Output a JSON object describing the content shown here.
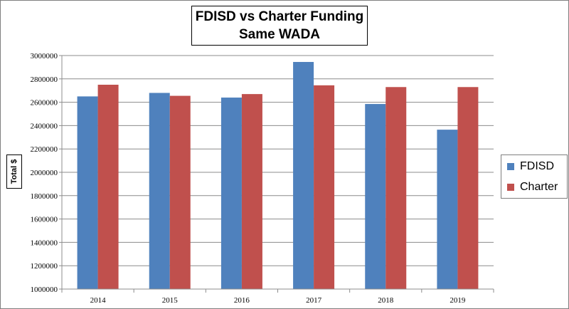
{
  "chart_data": {
    "type": "bar",
    "title_lines": [
      "FDISD vs Charter Funding",
      "Same WADA"
    ],
    "ylabel": "Total $",
    "xlabel": "",
    "categories": [
      "2014",
      "2015",
      "2016",
      "2017",
      "2018",
      "2019"
    ],
    "series": [
      {
        "name": "FDISD",
        "color": "#4f81bd",
        "values": [
          2650000,
          2680000,
          2640000,
          2945000,
          2585000,
          2365000
        ]
      },
      {
        "name": "Charter",
        "color": "#c0504d",
        "values": [
          2750000,
          2655000,
          2670000,
          2745000,
          2730000,
          2730000
        ]
      }
    ],
    "ylim": [
      1000000,
      3000000
    ],
    "yticks": [
      "1000000",
      "1200000",
      "1400000",
      "1600000",
      "1800000",
      "2000000",
      "2200000",
      "2400000",
      "2600000",
      "2800000",
      "3000000"
    ],
    "grid": true,
    "legend_position": "right"
  }
}
